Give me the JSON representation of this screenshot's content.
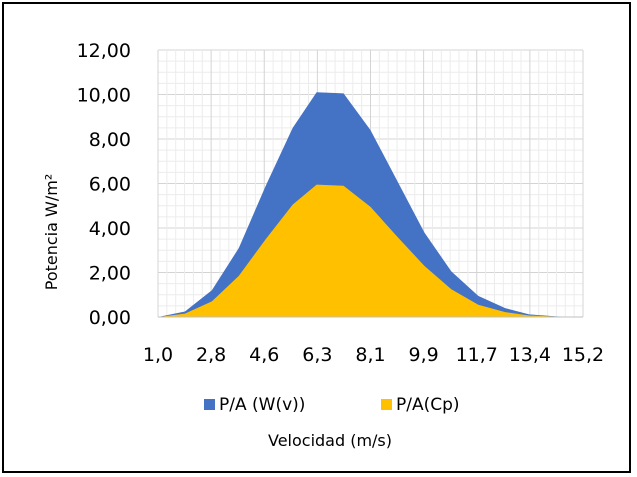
{
  "chart_data": {
    "type": "area",
    "stacked": false,
    "xlabel": "Velocidad (m/s)",
    "ylabel": "Potencia W/m²",
    "x": [
      1.0,
      1.9,
      2.8,
      3.7,
      4.6,
      5.5,
      6.3,
      7.2,
      8.1,
      9.0,
      9.9,
      10.8,
      11.7,
      12.6,
      13.4,
      14.3,
      15.2
    ],
    "x_tick_labels": [
      "1,0",
      "2,8",
      "4,6",
      "6,3",
      "8,1",
      "9,9",
      "11,7",
      "13,4",
      "15,2"
    ],
    "y_tick_labels": [
      "0,00",
      "2,00",
      "4,00",
      "6,00",
      "8,00",
      "10,00",
      "12,00"
    ],
    "ylim": [
      0,
      12
    ],
    "grid": true,
    "legend_position": "bottom",
    "series": [
      {
        "name": "P/A (W(v))",
        "color": "#4472C4",
        "values": [
          0.0,
          0.25,
          1.2,
          3.1,
          5.9,
          8.5,
          10.1,
          10.05,
          8.4,
          6.1,
          3.8,
          2.05,
          0.95,
          0.4,
          0.12,
          0.03,
          0.0
        ]
      },
      {
        "name": "P/A(Cp)",
        "color": "#FFC000",
        "values": [
          0.0,
          0.15,
          0.7,
          1.85,
          3.5,
          5.05,
          5.95,
          5.9,
          4.95,
          3.6,
          2.3,
          1.25,
          0.55,
          0.22,
          0.07,
          0.02,
          0.0
        ]
      }
    ]
  }
}
